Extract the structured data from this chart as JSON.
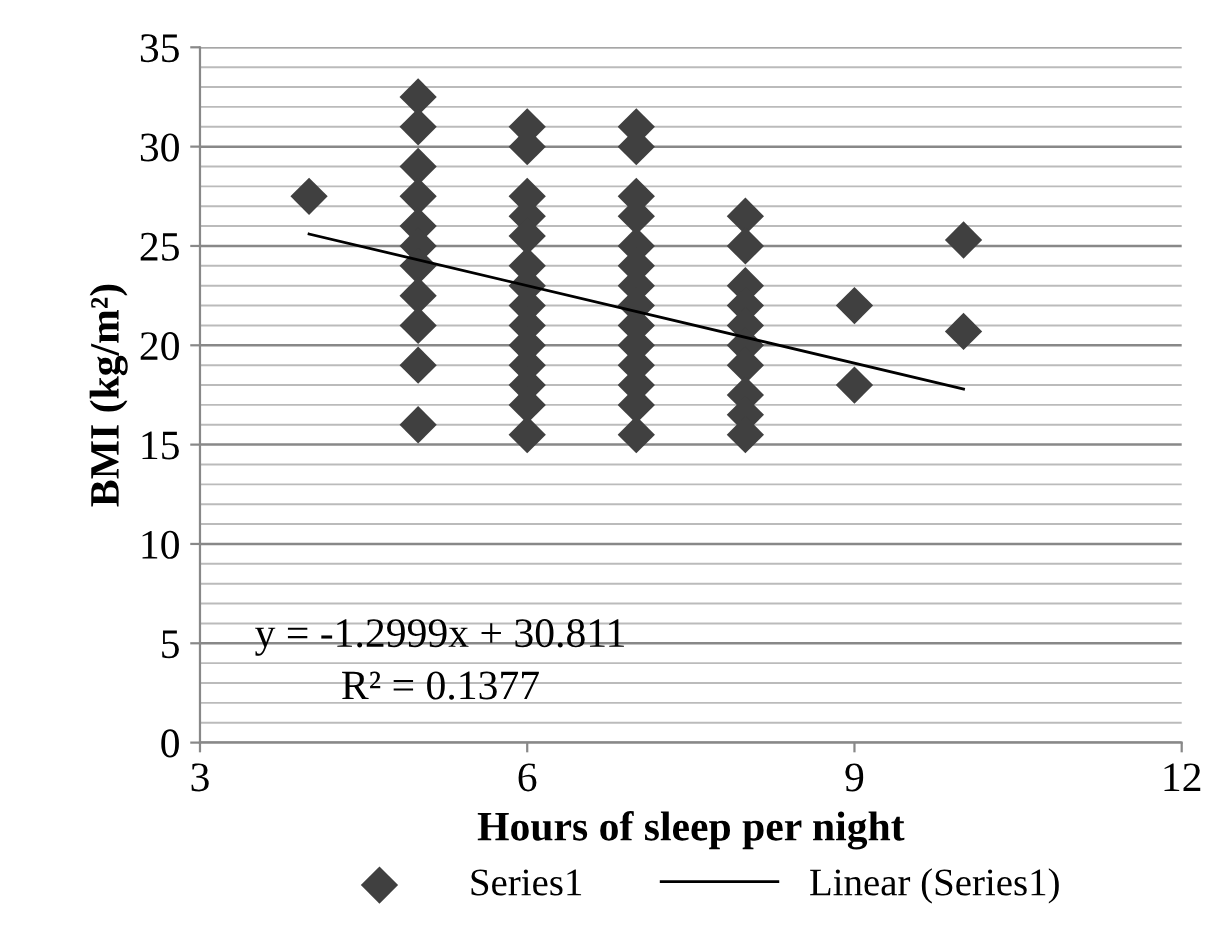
{
  "chart_data": {
    "type": "scatter",
    "xlabel": "Hours of sleep per night",
    "ylabel": "BMI (kg/m²)",
    "series": [
      {
        "name": "Series1",
        "color": "#404040",
        "marker": "diamond",
        "x": [
          4,
          5,
          5,
          5,
          5,
          5,
          5,
          5,
          5,
          5,
          5,
          5,
          6,
          6,
          6,
          6,
          6,
          6,
          6,
          6,
          6,
          6,
          6,
          6,
          6,
          6,
          7,
          7,
          7,
          7,
          7,
          7,
          7,
          7,
          7,
          7,
          7,
          7,
          7,
          7,
          8,
          8,
          8,
          8,
          8,
          8,
          8,
          8,
          8,
          8,
          9,
          9,
          10,
          10
        ],
        "values": [
          27.5,
          32.5,
          31,
          29,
          27.5,
          26,
          25,
          24,
          22.5,
          21,
          19,
          16,
          31,
          30,
          27.5,
          26.5,
          25.5,
          24,
          23,
          22,
          21,
          20,
          19,
          18,
          17,
          15.5,
          31,
          30,
          27.5,
          26.5,
          25,
          24,
          23,
          22,
          21,
          20,
          19,
          18,
          17,
          15.5,
          26.5,
          25,
          23,
          22,
          21,
          20,
          19,
          17.5,
          16.5,
          15.5,
          22,
          18,
          25.3,
          20.7
        ]
      },
      {
        "name": "Linear (Series1)",
        "type": "line",
        "color": "#000000",
        "marker": "none",
        "line_style": "solid",
        "x": [
          4,
          10
        ],
        "values": [
          25.6,
          17.8
        ]
      }
    ],
    "xlim": [
      3,
      12
    ],
    "xticks": [
      3,
      6,
      9,
      12
    ],
    "ylim": [
      0,
      35
    ],
    "yticks": [
      0,
      5,
      10,
      15,
      20,
      25,
      30,
      35
    ],
    "grid": "y",
    "legend": "bottom",
    "annotations": [
      "y = -1.2999x + 30.811",
      "R² = 0.1377"
    ]
  }
}
